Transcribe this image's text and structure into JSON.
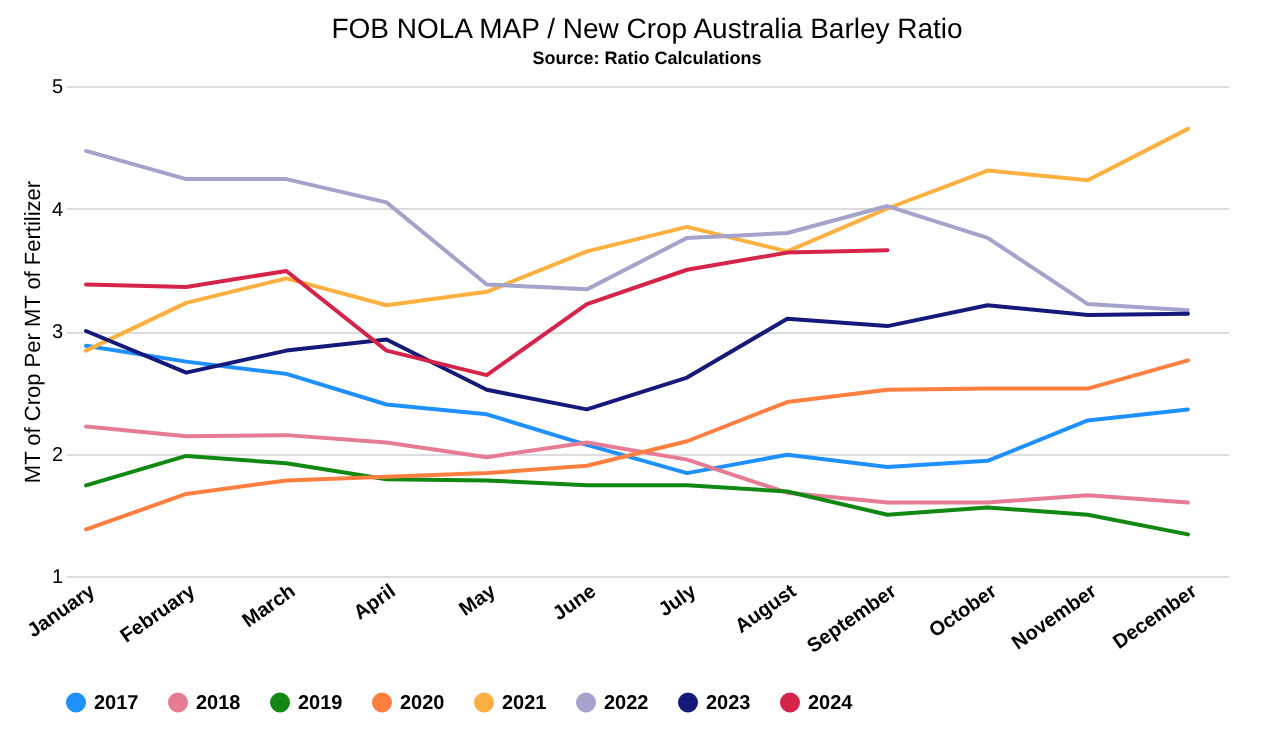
{
  "chart_data": {
    "type": "line",
    "title": "FOB NOLA MAP / New Crop Australia Barley Ratio",
    "subtitle": "Source: Ratio Calculations",
    "ylabel": "MT of Crop Per MT of Fertilizer",
    "categories": [
      "January",
      "February",
      "March",
      "April",
      "May",
      "June",
      "July",
      "August",
      "September",
      "October",
      "November",
      "December"
    ],
    "ylim": [
      1,
      5
    ],
    "yticks": [
      1,
      2,
      3,
      4,
      5
    ],
    "grid": "y",
    "legend": "bottom",
    "marker": "none",
    "line_style": "solid",
    "series": [
      {
        "name": "2017",
        "color": "#1e90ff",
        "values": [
          2.88,
          2.75,
          2.65,
          2.4,
          2.32,
          2.07,
          1.84,
          1.99,
          1.89,
          1.94,
          2.27,
          2.36
        ]
      },
      {
        "name": "2018",
        "color": "#e57c93",
        "values": [
          2.22,
          2.14,
          2.15,
          2.09,
          1.97,
          2.09,
          1.95,
          1.68,
          1.6,
          1.6,
          1.66,
          1.6
        ]
      },
      {
        "name": "2019",
        "color": "#118811",
        "values": [
          1.74,
          1.98,
          1.92,
          1.79,
          1.78,
          1.74,
          1.74,
          1.69,
          1.5,
          1.56,
          1.5,
          1.34
        ]
      },
      {
        "name": "2020",
        "color": "#ff7f40",
        "values": [
          1.38,
          1.67,
          1.78,
          1.81,
          1.84,
          1.9,
          2.1,
          2.42,
          2.52,
          2.53,
          2.53,
          2.76
        ]
      },
      {
        "name": "2021",
        "color": "#fbb040",
        "values": [
          2.84,
          3.23,
          3.43,
          3.21,
          3.32,
          3.65,
          3.85,
          3.65,
          4.0,
          4.31,
          4.23,
          4.65
        ]
      },
      {
        "name": "2022",
        "color": "#a3a3cc",
        "values": [
          4.47,
          4.24,
          4.24,
          4.05,
          3.38,
          3.34,
          3.76,
          3.8,
          4.02,
          3.76,
          3.22,
          3.17
        ]
      },
      {
        "name": "2023",
        "color": "#14197a",
        "values": [
          3.0,
          2.66,
          2.84,
          2.93,
          2.52,
          2.36,
          2.62,
          3.1,
          3.04,
          3.21,
          3.13,
          3.14
        ]
      },
      {
        "name": "2024",
        "color": "#d6234a",
        "values": [
          3.38,
          3.36,
          3.49,
          2.84,
          2.64,
          3.22,
          3.5,
          3.64,
          3.66,
          null,
          null,
          null
        ]
      }
    ]
  }
}
